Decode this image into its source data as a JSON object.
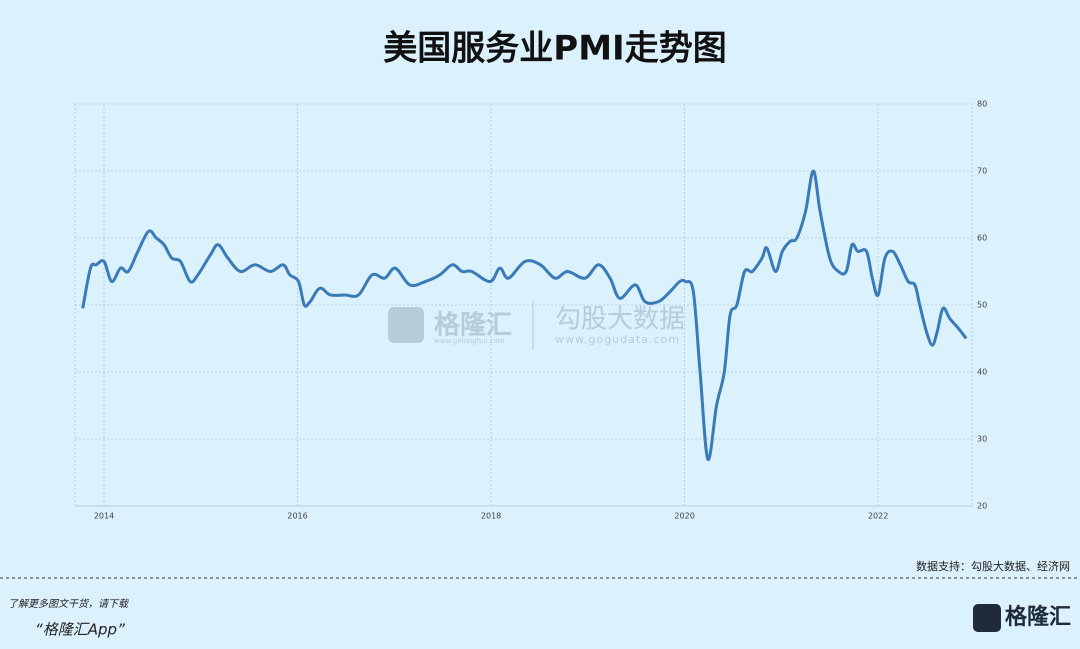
{
  "chart_data": {
    "type": "line",
    "title": "美国服务业PMI走势图",
    "x": [
      2013.78,
      2013.86,
      2013.92,
      2014.0,
      2014.08,
      2014.17,
      2014.25,
      2014.35,
      2014.46,
      2014.54,
      2014.62,
      2014.7,
      2014.79,
      2014.89,
      2014.97,
      2015.1,
      2015.18,
      2015.28,
      2015.41,
      2015.56,
      2015.72,
      2015.85,
      2015.92,
      2016.01,
      2016.07,
      2016.13,
      2016.23,
      2016.34,
      2016.49,
      2016.63,
      2016.77,
      2016.9,
      2017.01,
      2017.16,
      2017.32,
      2017.47,
      2017.6,
      2017.7,
      2017.8,
      2017.99,
      2018.09,
      2018.18,
      2018.35,
      2018.51,
      2018.66,
      2018.79,
      2018.97,
      2019.11,
      2019.23,
      2019.33,
      2019.49,
      2019.59,
      2019.73,
      2019.85,
      2019.95,
      2020.01,
      2020.09,
      2020.16,
      2020.24,
      2020.33,
      2020.41,
      2020.47,
      2020.54,
      2020.62,
      2020.7,
      2020.8,
      2020.85,
      2020.94,
      2021.01,
      2021.09,
      2021.16,
      2021.25,
      2021.33,
      2021.4,
      2021.5,
      2021.59,
      2021.67,
      2021.73,
      2021.79,
      2021.88,
      2021.94,
      2022.0,
      2022.07,
      2022.15,
      2022.23,
      2022.31,
      2022.38,
      2022.43,
      2022.5,
      2022.56,
      2022.61,
      2022.67,
      2022.74,
      2022.83,
      2022.91
    ],
    "series": [
      {
        "name": "美国服务业PMI",
        "color": "#3a7ab8",
        "values": [
          49.5,
          55.5,
          56,
          56.5,
          53.5,
          55.5,
          55,
          58,
          61,
          60,
          59,
          57,
          56.5,
          53.5,
          54.5,
          57.5,
          59,
          57,
          55,
          56,
          55,
          56,
          54.5,
          53.5,
          50,
          50.5,
          52.5,
          51.5,
          51.5,
          51.5,
          54.5,
          54,
          55.5,
          53,
          53.5,
          54.5,
          56,
          55,
          55,
          53.5,
          55.5,
          54,
          56.5,
          56,
          54,
          55,
          54,
          56,
          54,
          51,
          53,
          50.5,
          50.5,
          52,
          53.5,
          53.5,
          52,
          40,
          27,
          35,
          40,
          48.5,
          50,
          55,
          55,
          57,
          58.5,
          55,
          58,
          59.5,
          60,
          64,
          70,
          64,
          57,
          55,
          55,
          59,
          58,
          58,
          54,
          51.5,
          57,
          58,
          56,
          53.5,
          53,
          50,
          46,
          44,
          46,
          49.5,
          48,
          46.5,
          45
        ]
      }
    ],
    "xlim": [
      2013.7,
      2022.97
    ],
    "xticks": [
      2014,
      2016,
      2018,
      2020,
      2022
    ],
    "ylim": [
      20,
      80
    ],
    "yticks": [
      20,
      30,
      40,
      50,
      60,
      70,
      80
    ],
    "grid": true
  },
  "source": "数据支持：勾股大数据、经济网",
  "watermark": {
    "brand": "格隆汇",
    "brand_url": "www.gelonghui.com",
    "partner": "勾股大数据",
    "partner_url": "www.gogudata.com"
  },
  "footer": {
    "line1": "了解更多图文干货，请下载",
    "line2": "“格隆汇App”",
    "logo": "格隆汇"
  }
}
